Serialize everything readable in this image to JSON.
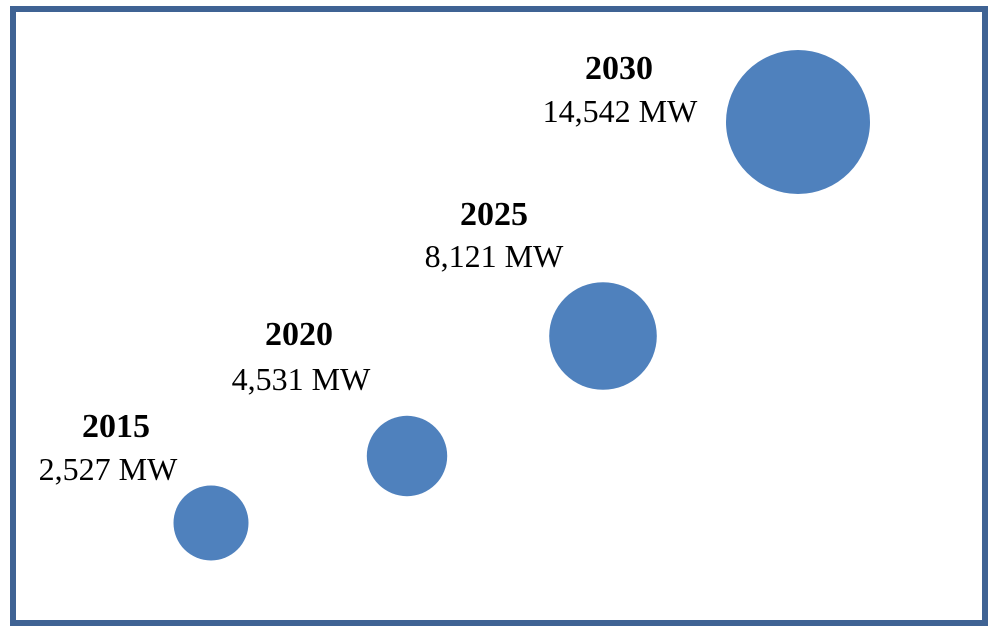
{
  "chart_data": {
    "type": "bubble",
    "unit": "MW",
    "points": [
      {
        "year": "2015",
        "value": 2527,
        "label": "2,527 MW"
      },
      {
        "year": "2020",
        "value": 4531,
        "label": "4,531 MW"
      },
      {
        "year": "2025",
        "value": 8121,
        "label": "8,121 MW"
      },
      {
        "year": "2030",
        "value": 14542,
        "label": "14,542 MW"
      }
    ],
    "bubble_color": "#4f81bd",
    "grid": false,
    "legend": "none"
  },
  "frame_color": "#3f6394"
}
